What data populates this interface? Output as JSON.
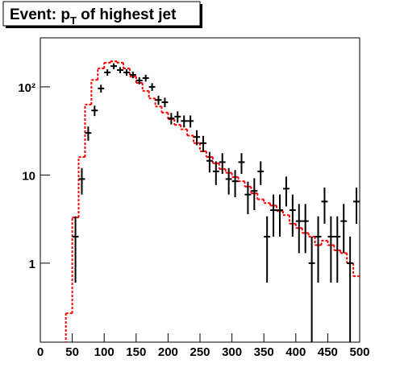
{
  "chart_data": {
    "type": "histogram",
    "title": {
      "parts": [
        "Event: p",
        "T",
        " of highest jet"
      ]
    },
    "log_y": true,
    "xlim": [
      0,
      500
    ],
    "ylim": [
      0.127,
      360
    ],
    "xticks": [
      0,
      50,
      100,
      150,
      200,
      250,
      300,
      350,
      400,
      450,
      500
    ],
    "yticks": [
      1,
      10,
      {
        "value": 100,
        "label": "10²"
      }
    ],
    "bins": [
      0,
      10,
      20,
      30,
      40,
      50,
      60,
      70,
      80,
      90,
      100,
      110,
      120,
      130,
      140,
      150,
      160,
      170,
      180,
      190,
      200,
      210,
      220,
      230,
      240,
      250,
      260,
      270,
      280,
      290,
      300,
      310,
      320,
      330,
      340,
      350,
      360,
      370,
      380,
      390,
      400,
      410,
      420,
      430,
      440,
      450,
      460,
      470,
      480,
      490,
      500
    ],
    "mc": {
      "color": "#ff0000",
      "values": [
        0,
        0,
        0,
        0,
        0.27,
        3.3,
        16,
        63,
        120,
        162,
        188,
        195,
        188,
        162,
        131,
        111,
        90,
        74,
        60,
        51,
        43,
        37,
        33,
        28,
        23,
        18.6,
        16,
        13.6,
        11.7,
        10.6,
        9.5,
        8.5,
        7.4,
        6.2,
        5.3,
        4.8,
        4.5,
        3.9,
        3.5,
        2.8,
        2.5,
        2.2,
        2.0,
        1.6,
        1.8,
        1.6,
        1.4,
        1.3,
        1.0,
        0.71
      ]
    },
    "data": {
      "color": "#000000",
      "values": [
        0,
        0,
        0,
        0,
        0,
        2,
        9,
        30,
        54,
        96,
        146,
        172,
        155,
        146,
        137,
        118,
        126,
        100,
        71,
        67,
        44,
        46,
        41,
        41,
        27,
        23,
        14.5,
        11,
        14,
        9,
        8.5,
        14,
        6,
        6.6,
        11,
        2,
        4,
        4,
        7,
        4,
        3,
        3,
        1,
        2,
        5,
        2,
        2,
        3,
        1,
        5
      ],
      "errors": [
        0,
        0,
        0,
        0,
        0,
        1.4,
        3,
        5.5,
        7.3,
        9.8,
        12.1,
        13.1,
        12.4,
        12.1,
        11.7,
        10.9,
        11.2,
        10,
        8.4,
        8.2,
        6.6,
        6.8,
        6.4,
        6.4,
        5.2,
        4.8,
        3.8,
        3.3,
        3.7,
        3,
        2.9,
        3.7,
        2.4,
        2.6,
        3.3,
        1.4,
        2,
        2,
        2.6,
        2,
        1.7,
        1.7,
        1,
        1.4,
        2.2,
        1.4,
        1.4,
        1.7,
        1,
        2.2
      ]
    }
  }
}
